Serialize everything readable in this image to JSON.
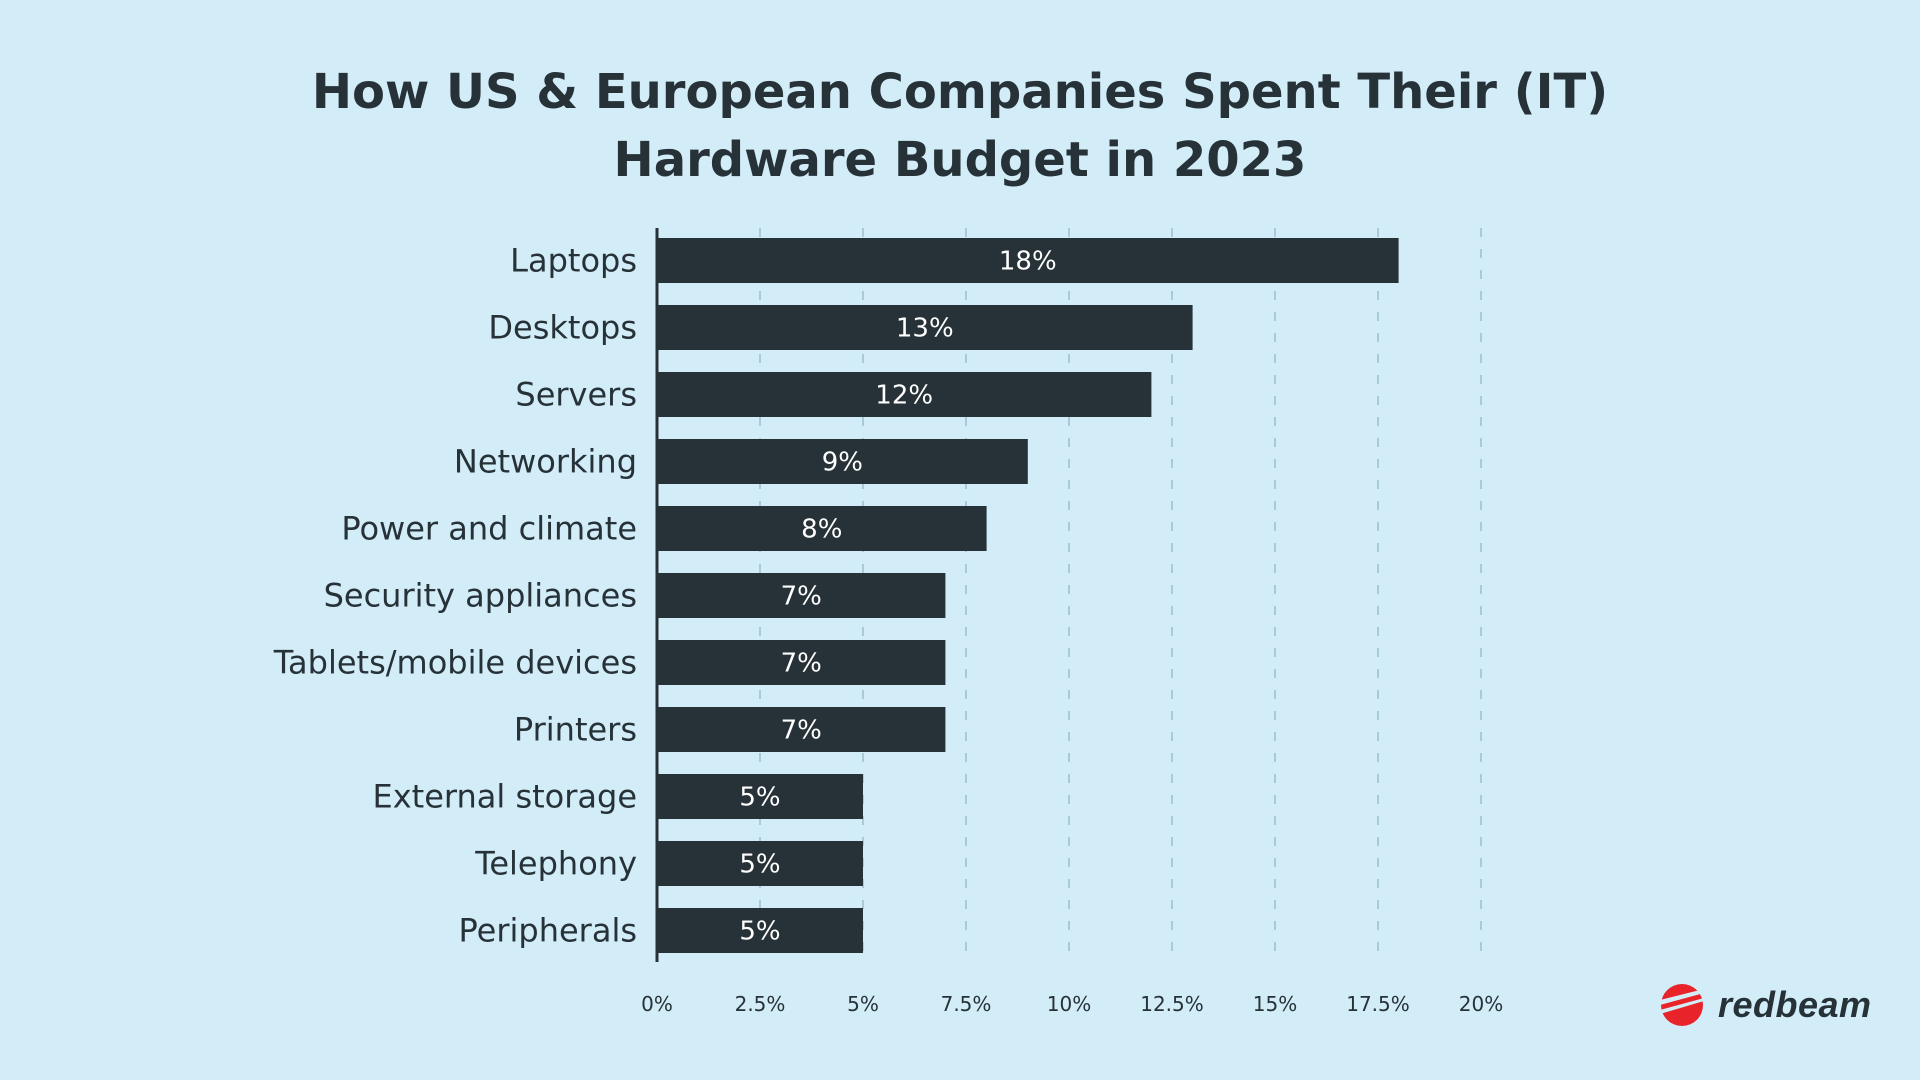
{
  "chart_data": {
    "type": "bar",
    "orientation": "horizontal",
    "title": "How US & European Companies Spent Their (IT) Hardware Budget in 2023",
    "title_lines": [
      "How US & European Companies Spent Their (IT)",
      "Hardware Budget in 2023"
    ],
    "categories": [
      "Laptops",
      "Desktops",
      "Servers",
      "Networking",
      "Power and climate",
      "Security appliances",
      "Tablets/mobile devices",
      "Printers",
      "External storage",
      "Telephony",
      "Peripherals"
    ],
    "values": [
      18,
      13,
      12,
      9,
      8,
      7,
      7,
      7,
      5,
      5,
      5
    ],
    "data_labels": [
      "18%",
      "13%",
      "12%",
      "9%",
      "8%",
      "7%",
      "7%",
      "7%",
      "5%",
      "5%",
      "5%"
    ],
    "xlim": [
      0,
      20
    ],
    "x_ticks": [
      0,
      2.5,
      5,
      7.5,
      10,
      12.5,
      15,
      17.5,
      20
    ],
    "x_tick_labels": [
      "0%",
      "2.5%",
      "5%",
      "7.5%",
      "10%",
      "12.5%",
      "15%",
      "17.5%",
      "20%"
    ],
    "xlabel": "",
    "ylabel": "",
    "grid": "vertical dashed",
    "colors": {
      "background": "#d2ecf8",
      "bar": "#263238",
      "text": "#263238",
      "grid": "#a9cad8",
      "label": "#ffffff"
    }
  },
  "brand": {
    "name": "redbeam",
    "color": "#e8232a"
  }
}
